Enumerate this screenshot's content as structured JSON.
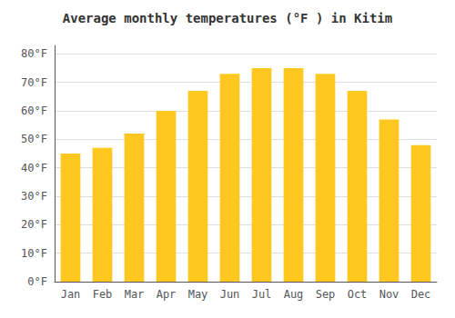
{
  "chart_data": {
    "type": "bar",
    "title": "Average monthly temperatures (°F ) in Kitim",
    "categories": [
      "Jan",
      "Feb",
      "Mar",
      "Apr",
      "May",
      "Jun",
      "Jul",
      "Aug",
      "Sep",
      "Oct",
      "Nov",
      "Dec"
    ],
    "values": [
      45,
      47,
      52,
      60,
      67,
      73,
      75,
      75,
      73,
      67,
      57,
      48
    ],
    "color": "#FFC820",
    "ylim": [
      0,
      83
    ],
    "yticks": [
      {
        "value": 0,
        "label": "0°F"
      },
      {
        "value": 10,
        "label": "10°F"
      },
      {
        "value": 20,
        "label": "20°F"
      },
      {
        "value": 30,
        "label": "30°F"
      },
      {
        "value": 40,
        "label": "40°F"
      },
      {
        "value": 50,
        "label": "50°F"
      },
      {
        "value": 60,
        "label": "60°F"
      },
      {
        "value": 70,
        "label": "70°F"
      },
      {
        "value": 80,
        "label": "80°F"
      }
    ],
    "grid": true
  }
}
